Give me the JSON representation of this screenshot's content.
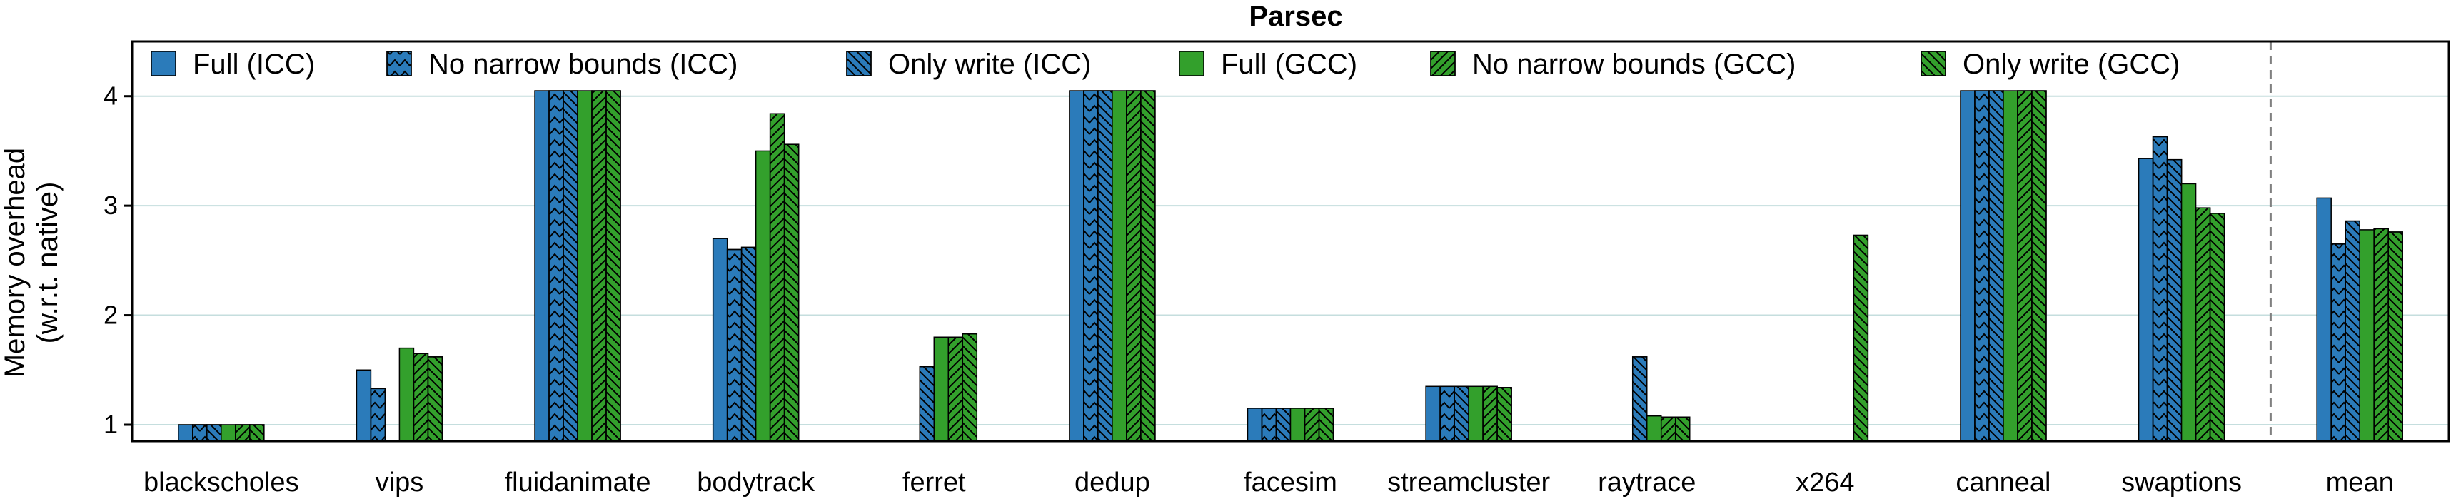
{
  "chart_data": {
    "type": "bar",
    "title": "Parsec",
    "ylabel_line1": "Memory overhead",
    "ylabel_line2": "(w.r.t. native)",
    "xlabel": "",
    "ylim": [
      0.85,
      4.5
    ],
    "yticks": [
      1,
      2,
      3,
      4
    ],
    "grid": "horizontal",
    "legend_position": "top",
    "categories": [
      "blackscholes",
      "vips",
      "fluidanimate",
      "bodytrack",
      "ferret",
      "dedup",
      "facesim",
      "streamcluster",
      "raytrace",
      "x264",
      "canneal",
      "swaptions",
      "mean"
    ],
    "separator_before": "mean",
    "series": [
      {
        "name": "Full (ICC)",
        "color": "#2b7bba",
        "hatch": "none",
        "values": [
          1.0,
          1.5,
          4.05,
          2.7,
          null,
          4.05,
          1.15,
          1.35,
          null,
          null,
          4.05,
          3.43,
          3.07
        ]
      },
      {
        "name": "No narrow bounds (ICC)",
        "color": "#2b7bba",
        "hatch": "chevron",
        "values": [
          1.0,
          1.33,
          4.05,
          2.6,
          null,
          4.05,
          1.15,
          1.35,
          null,
          null,
          4.05,
          3.63,
          2.65
        ]
      },
      {
        "name": "Only write (ICC)",
        "color": "#2b7bba",
        "hatch": "backslash",
        "values": [
          1.0,
          null,
          4.05,
          2.62,
          1.53,
          4.05,
          1.15,
          1.35,
          1.62,
          null,
          4.05,
          3.42,
          2.86
        ]
      },
      {
        "name": "Full (GCC)",
        "color": "#33a02c",
        "hatch": "none",
        "values": [
          1.0,
          1.7,
          4.05,
          3.5,
          1.8,
          4.05,
          1.15,
          1.35,
          1.08,
          null,
          4.05,
          3.2,
          2.78
        ]
      },
      {
        "name": "No narrow bounds (GCC)",
        "color": "#33a02c",
        "hatch": "slash",
        "values": [
          1.0,
          1.65,
          4.05,
          3.84,
          1.8,
          4.05,
          1.15,
          1.35,
          1.07,
          null,
          4.05,
          2.98,
          2.79
        ]
      },
      {
        "name": "Only write (GCC)",
        "color": "#33a02c",
        "hatch": "backslash",
        "values": [
          1.0,
          1.62,
          4.05,
          3.56,
          1.83,
          4.05,
          1.15,
          1.34,
          1.07,
          2.73,
          4.05,
          2.93,
          2.76
        ]
      }
    ]
  }
}
